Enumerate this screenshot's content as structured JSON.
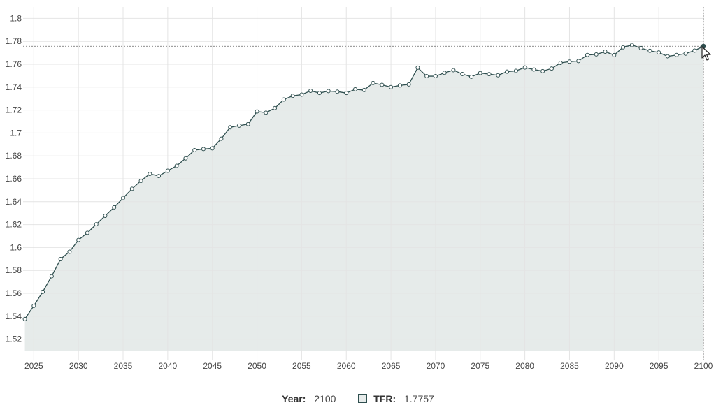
{
  "chart_data": {
    "type": "area",
    "x": [
      2024,
      2025,
      2026,
      2027,
      2028,
      2029,
      2030,
      2031,
      2032,
      2033,
      2034,
      2035,
      2036,
      2037,
      2038,
      2039,
      2040,
      2041,
      2042,
      2043,
      2044,
      2045,
      2046,
      2047,
      2048,
      2049,
      2050,
      2051,
      2052,
      2053,
      2054,
      2055,
      2056,
      2057,
      2058,
      2059,
      2060,
      2061,
      2062,
      2063,
      2064,
      2065,
      2066,
      2067,
      2068,
      2069,
      2070,
      2071,
      2072,
      2073,
      2074,
      2075,
      2076,
      2077,
      2078,
      2079,
      2080,
      2081,
      2082,
      2083,
      2084,
      2085,
      2086,
      2087,
      2088,
      2089,
      2090,
      2091,
      2092,
      2093,
      2094,
      2095,
      2096,
      2097,
      2098,
      2099,
      2100
    ],
    "series": [
      {
        "values": [
          1.5375,
          1.5491,
          1.5613,
          1.5749,
          1.5899,
          1.5963,
          1.6066,
          1.6128,
          1.6203,
          1.6277,
          1.6351,
          1.6432,
          1.6512,
          1.6582,
          1.6643,
          1.6624,
          1.667,
          1.6713,
          1.6778,
          1.685,
          1.686,
          1.6866,
          1.695,
          1.705,
          1.7064,
          1.7077,
          1.7188,
          1.7177,
          1.7217,
          1.7292,
          1.7324,
          1.7335,
          1.7368,
          1.7349,
          1.7366,
          1.7361,
          1.7349,
          1.7381,
          1.7375,
          1.7436,
          1.742,
          1.74,
          1.7415,
          1.7424,
          1.757,
          1.7496,
          1.7496,
          1.7525,
          1.7548,
          1.7515,
          1.7491,
          1.7523,
          1.7514,
          1.7504,
          1.7535,
          1.7542,
          1.7572,
          1.7554,
          1.754,
          1.7563,
          1.7612,
          1.7623,
          1.7628,
          1.7681,
          1.7686,
          1.771,
          1.768,
          1.7748,
          1.7768,
          1.7741,
          1.7717,
          1.7703,
          1.7669,
          1.7681,
          1.7693,
          1.7719,
          1.7757
        ],
        "color": "#2f4f4f",
        "fill": "#e6ebea"
      }
    ],
    "x_ticks": [
      "2025",
      "2030",
      "2035",
      "2040",
      "2045",
      "2050",
      "2055",
      "2060",
      "2065",
      "2070",
      "2075",
      "2080",
      "2085",
      "2090",
      "2095",
      "2100"
    ],
    "y_ticks": [
      "1.52",
      "1.54",
      "1.56",
      "1.58",
      "1.6",
      "1.62",
      "1.64",
      "1.66",
      "1.68",
      "1.7",
      "1.72",
      "1.74",
      "1.76",
      "1.78",
      "1.8"
    ],
    "xlim": [
      2023.8,
      2100
    ],
    "ylim": [
      1.51,
      1.81
    ],
    "grid": true,
    "crosshair": {
      "x": 2100,
      "y": 1.7757
    }
  },
  "readout": {
    "year_label": "Year:",
    "year_value": "2100",
    "tfr_label": "TFR:",
    "tfr_value": "1.7757"
  },
  "icons": {
    "cursor": "pointer-cursor-icon",
    "series_swatch": "series-swatch-icon"
  }
}
